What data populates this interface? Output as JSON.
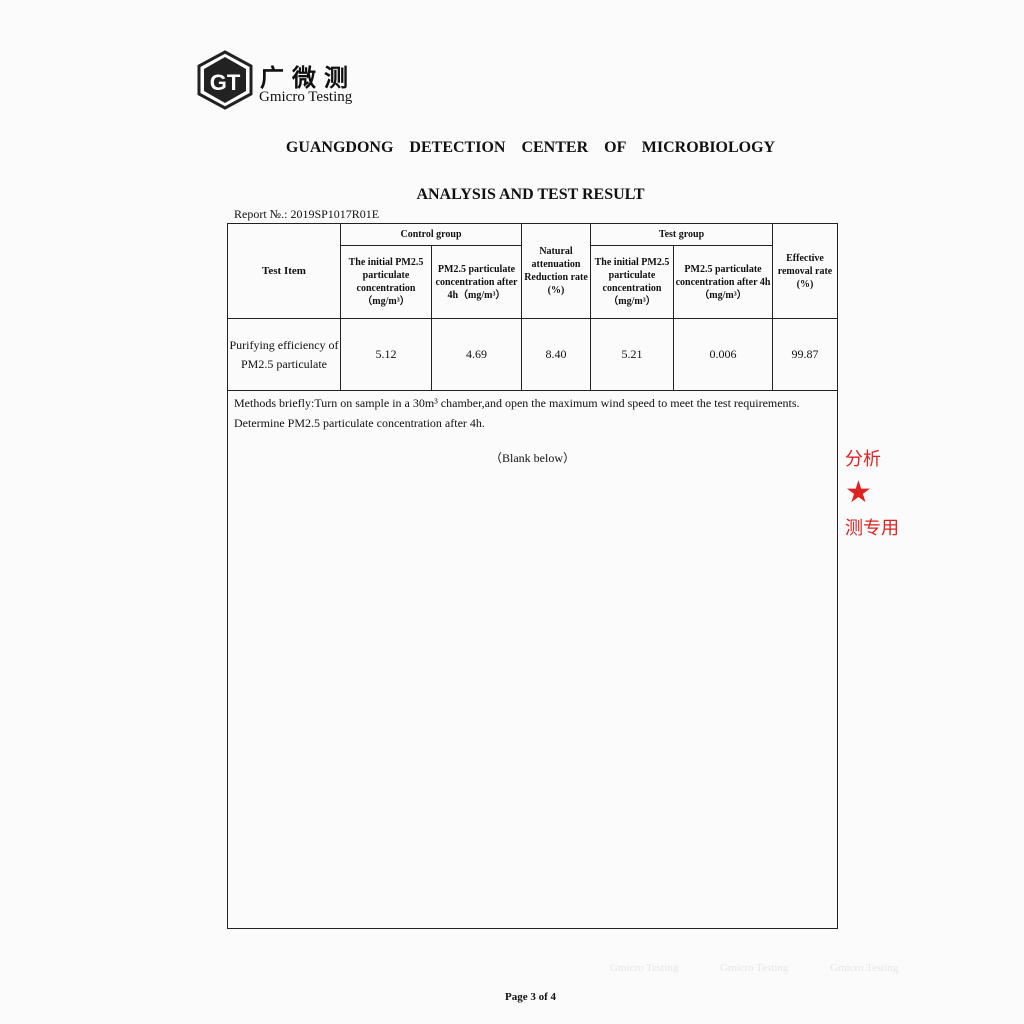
{
  "header": {
    "logo_text": "GT",
    "brand_cn": "广微测",
    "brand_en": "Gmicro Testing",
    "organization": "GUANGDONG DETECTION CENTER OF MICROBIOLOGY",
    "title": "ANALYSIS AND TEST RESULT",
    "report_no": "Report №.: 2019SP1017R01E"
  },
  "table": {
    "test_item": "Test Item",
    "control_group": "Control group",
    "test_group": "Test group",
    "c_initial": "The initial PM2.5 particulate concentration （mg/m³）",
    "c_after": "PM2.5 particulate concentration after 4h（mg/m³）",
    "natural": "Natural attenuation Reduction rate (%)",
    "t_initial": "The initial PM2.5 particulate concentration （mg/m³）",
    "t_after": "PM2.5 particulate concentration after 4h （mg/m³）",
    "effective": "Effective removal rate (%)",
    "row": {
      "item": "Purifying efficiency of PM2.5 particulate",
      "c_initial": "5.12",
      "c_after": "4.69",
      "natural": "8.40",
      "t_initial": "5.21",
      "t_after": "0.006",
      "effective": "99.87"
    }
  },
  "methods": {
    "line1": "Methods briefly:Turn on sample in a 30m³ chamber,and open the maximum wind speed to meet the test requirements.",
    "line2": "Determine PM2.5 particulate concentration after 4h.",
    "blank": "（Blank below）"
  },
  "stamp": {
    "line1": "分析",
    "line2": "测专用"
  },
  "watermark": "Gmicro Testing",
  "footer": {
    "page": "Page 3 of 4"
  }
}
